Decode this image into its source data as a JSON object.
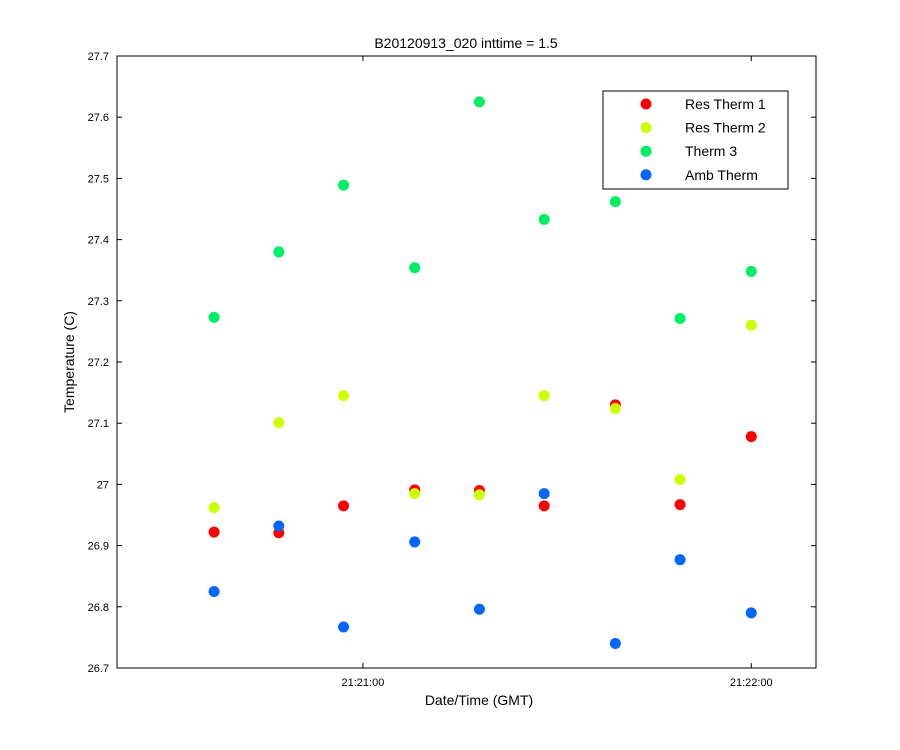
{
  "chart_data": {
    "type": "scatter",
    "title": "B20120913_020 inttime = 1.5",
    "xlabel": "Date/Time (GMT)",
    "ylabel": "Temperature (C)",
    "xlim": [
      "21:20:22",
      "21:22:10"
    ],
    "ylim": [
      26.7,
      27.7
    ],
    "x_ticks": [
      "21:21:00",
      "21:22:00"
    ],
    "y_ticks": [
      "26.7",
      "26.8",
      "26.9",
      "27",
      "27.1",
      "27.2",
      "27.3",
      "27.4",
      "27.5",
      "27.6",
      "27.7"
    ],
    "grid": false,
    "legend_position": "top-right",
    "x": [
      "21:20:37",
      "21:20:47",
      "21:20:57",
      "21:21:08",
      "21:21:18",
      "21:21:28",
      "21:21:39",
      "21:21:49",
      "21:22:00"
    ],
    "series": [
      {
        "name": "Res Therm 1",
        "color": "#ff0000",
        "values": [
          26.922,
          26.921,
          26.965,
          26.991,
          26.99,
          26.965,
          27.13,
          26.967,
          27.078
        ]
      },
      {
        "name": "Res Therm 2",
        "color": "#ccff00",
        "values": [
          26.962,
          27.101,
          27.145,
          26.985,
          26.983,
          27.145,
          27.124,
          27.008,
          27.26
        ]
      },
      {
        "name": "Therm 3",
        "color": "#00ee66",
        "values": [
          27.273,
          27.38,
          27.489,
          27.354,
          27.625,
          27.433,
          27.462,
          27.271,
          27.348
        ]
      },
      {
        "name": "Amb Therm",
        "color": "#0066ff",
        "values": [
          26.825,
          26.932,
          26.767,
          26.906,
          26.796,
          26.985,
          26.74,
          26.877,
          26.79
        ]
      }
    ]
  }
}
